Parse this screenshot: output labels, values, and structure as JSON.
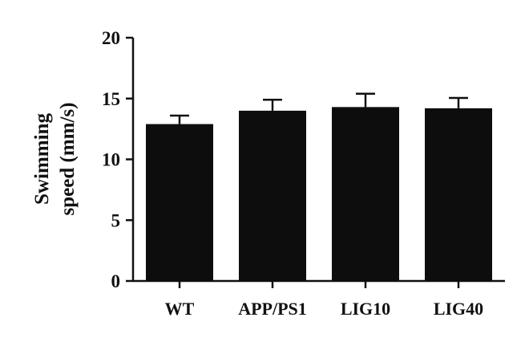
{
  "chart_data": {
    "type": "bar",
    "title": "",
    "xlabel": "",
    "ylabel_lines": [
      "Swimming",
      "speed (mm/s)"
    ],
    "categories": [
      "WT",
      "APP/PS1",
      "LIG10",
      "LIG40"
    ],
    "values": [
      12.9,
      14.0,
      14.3,
      14.2
    ],
    "errors": [
      0.7,
      0.9,
      1.1,
      0.85
    ],
    "ylim": [
      0,
      20
    ],
    "yticks": [
      0,
      5,
      10,
      15,
      20
    ],
    "bar_color": "#0d0d0d",
    "grid": false,
    "legend": "none"
  }
}
